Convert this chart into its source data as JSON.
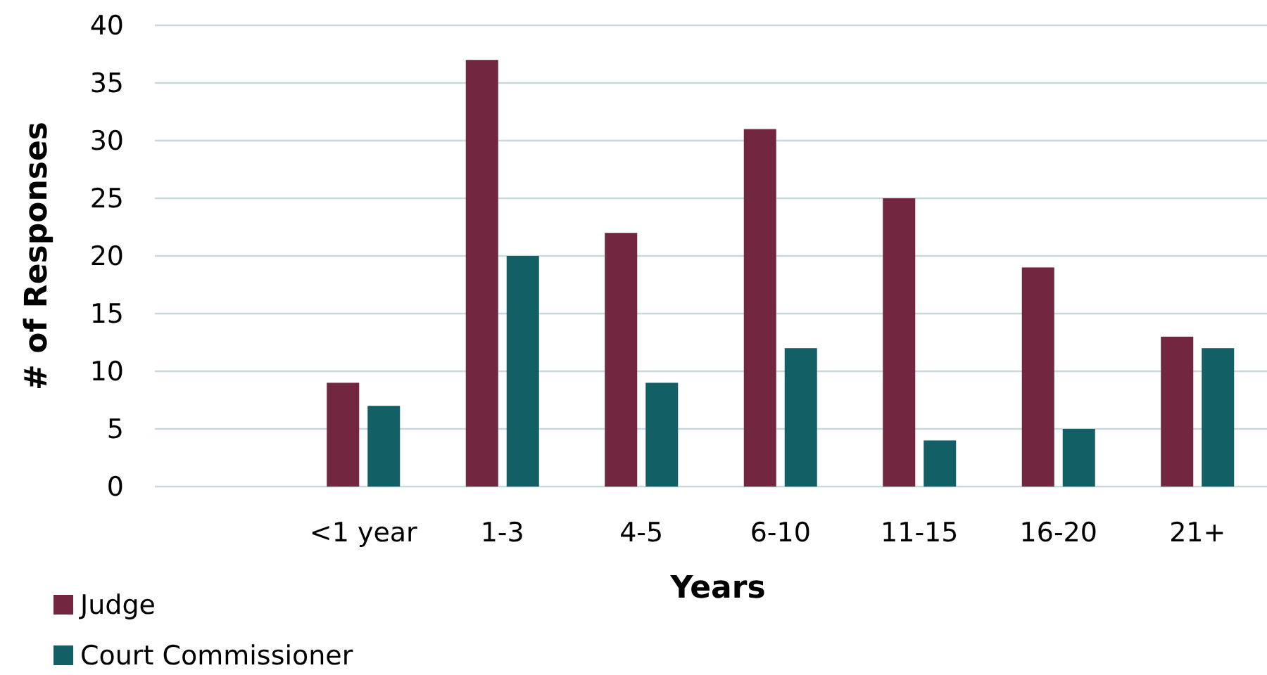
{
  "chart_data": {
    "type": "bar",
    "xlabel": "Years",
    "ylabel": "# of Responses",
    "categories": [
      null,
      "<1 year",
      "1-3",
      "4-5",
      "6-10",
      "11-15",
      "16-20",
      "21+"
    ],
    "series": [
      {
        "name": "Judge",
        "color": "#722640",
        "values": [
          null,
          9,
          37,
          22,
          31,
          25,
          19,
          13
        ]
      },
      {
        "name": "Court Commissioner",
        "color": "#135f66",
        "values": [
          null,
          7,
          20,
          9,
          12,
          4,
          5,
          12
        ]
      }
    ],
    "ylim": [
      0,
      40
    ],
    "yticks": [
      0,
      5,
      10,
      15,
      20,
      25,
      30,
      35,
      40
    ],
    "grid": "y",
    "legend": "bottom left"
  }
}
